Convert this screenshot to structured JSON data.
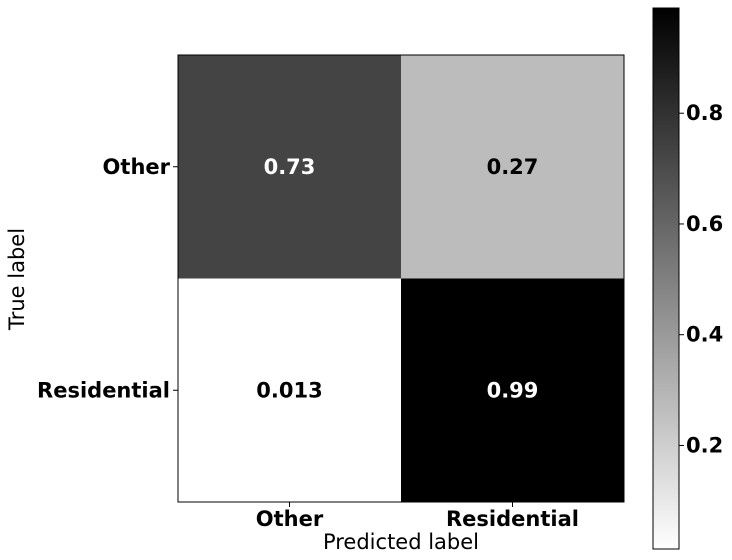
{
  "chart_data": {
    "type": "heatmap",
    "title": "",
    "xlabel": "Predicted label",
    "ylabel": "True label",
    "x_categories": [
      "Other",
      "Residential"
    ],
    "y_categories": [
      "Other",
      "Residential"
    ],
    "values": [
      [
        0.73,
        0.27
      ],
      [
        0.013,
        0.99
      ]
    ],
    "cell_labels": [
      [
        "0.73",
        "0.27"
      ],
      [
        "0.013",
        "0.99"
      ]
    ],
    "colormap": "gray_r",
    "colorbar": {
      "vmin": 0.013,
      "vmax": 0.99,
      "ticks": [
        0.2,
        0.4,
        0.6,
        0.8
      ],
      "tick_labels": [
        "0.2",
        "0.4",
        "0.6",
        "0.8"
      ]
    }
  }
}
